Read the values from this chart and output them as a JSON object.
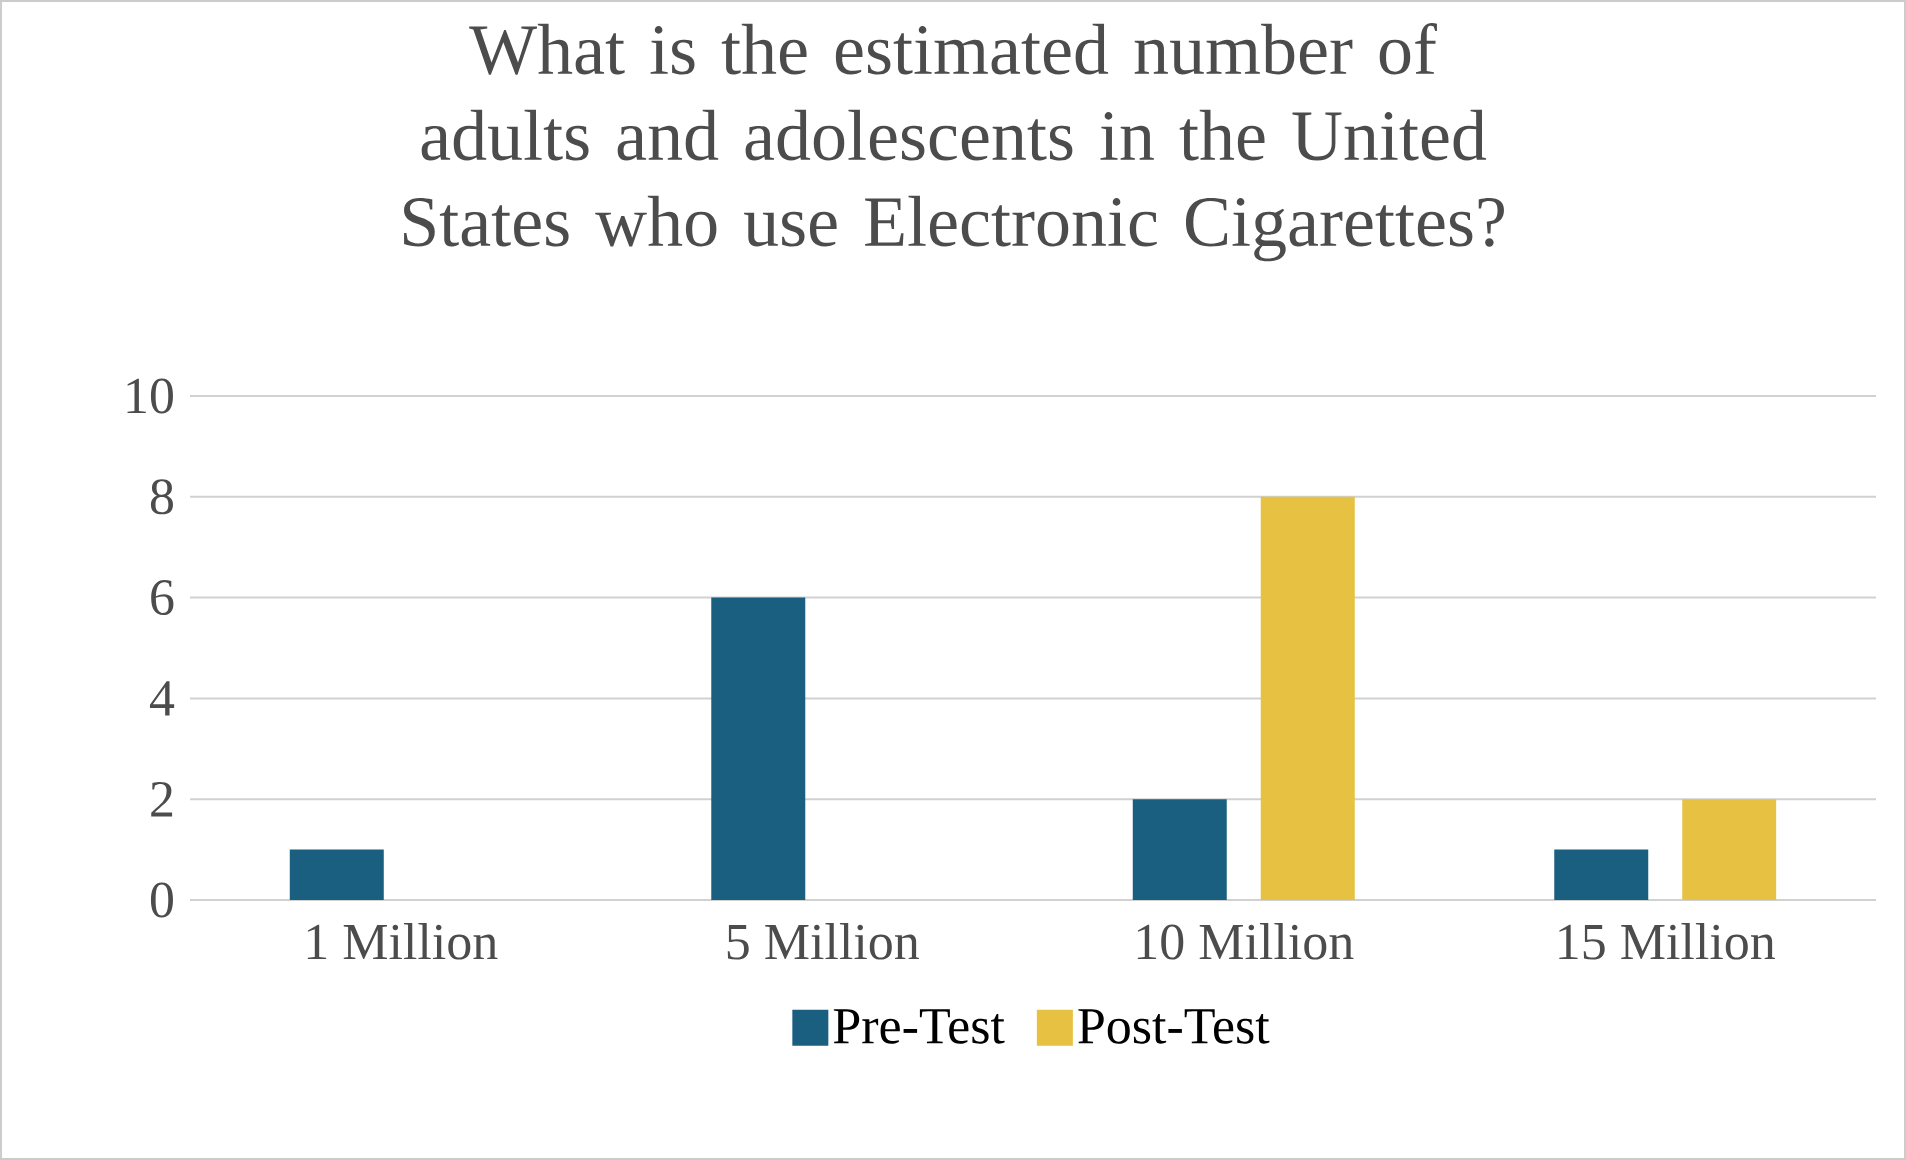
{
  "chart_data": {
    "type": "bar",
    "title": "What is the estimated number of adults and adolescents in the United States who use Electronic Cigarettes?",
    "categories": [
      "1 Million",
      "5 Million",
      "10 Million",
      "15 Million"
    ],
    "series": [
      {
        "name": "Pre-Test",
        "color": "#1b5f80",
        "values": [
          1,
          6,
          2,
          1
        ]
      },
      {
        "name": "Post-Test",
        "color": "#e6c142",
        "values": [
          0,
          0,
          8,
          2
        ]
      }
    ],
    "ylim": [
      0,
      10
    ],
    "yticks": [
      0,
      2,
      4,
      6,
      8,
      10
    ],
    "grid": "y",
    "legend": "bottom"
  }
}
